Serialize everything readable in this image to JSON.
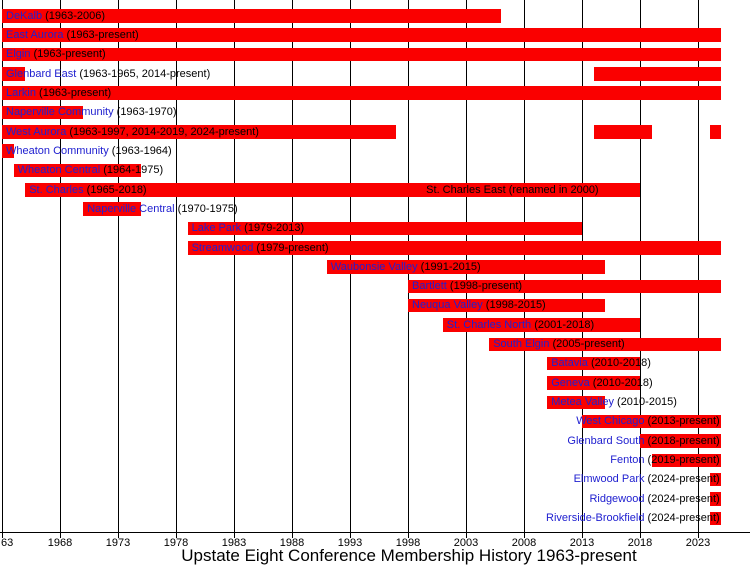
{
  "colors": {
    "bar": "#fa0000",
    "link_text": "#2020d0",
    "year_text": "#000000",
    "grid": "#000000",
    "axis": "#000000",
    "title_text": "#000000",
    "background": "#ffffff"
  },
  "chart_data": {
    "type": "bar",
    "subtype": "timeline-gantt",
    "title": "Upstate Eight Conference Membership History 1963-present",
    "xlim": [
      1963,
      2025
    ],
    "present_maps_to": 2025,
    "grid": "on",
    "x_ticks": [
      {
        "year": 1963,
        "label": "63"
      },
      {
        "year": 1968,
        "label": "1968"
      },
      {
        "year": 1973,
        "label": "1973"
      },
      {
        "year": 1978,
        "label": "1978"
      },
      {
        "year": 1983,
        "label": "1983"
      },
      {
        "year": 1988,
        "label": "1988"
      },
      {
        "year": 1993,
        "label": "1993"
      },
      {
        "year": 1998,
        "label": "1998"
      },
      {
        "year": 2003,
        "label": "2003"
      },
      {
        "year": 2008,
        "label": "2008"
      },
      {
        "year": 2013,
        "label": "2013"
      },
      {
        "year": 2018,
        "label": "2018"
      },
      {
        "year": 2023,
        "label": "2023"
      }
    ],
    "rows": [
      {
        "name": "DeKalb",
        "years": "(1963-2006)",
        "periods": [
          [
            1963,
            2006
          ]
        ],
        "align": "left"
      },
      {
        "name": "East Aurora",
        "years": "(1963-present)",
        "periods": [
          [
            1963,
            2025
          ]
        ],
        "align": "left"
      },
      {
        "name": "Elgin",
        "years": "(1963-present)",
        "periods": [
          [
            1963,
            2025
          ]
        ],
        "align": "left"
      },
      {
        "name": "Glenbard East",
        "years": "(1963-1965, 2014-present)",
        "periods": [
          [
            1963,
            1965
          ],
          [
            2014,
            2025
          ]
        ],
        "align": "left"
      },
      {
        "name": "Larkin",
        "years": "(1963-present)",
        "periods": [
          [
            1963,
            2025
          ]
        ],
        "align": "left"
      },
      {
        "name": "Naperville Community",
        "years": "(1963-1970)",
        "periods": [
          [
            1963,
            1970
          ]
        ],
        "align": "left"
      },
      {
        "name": "West Aurora",
        "years": "(1963-1997, 2014-2019, 2024-present)",
        "periods": [
          [
            1963,
            1997
          ],
          [
            2014,
            2019
          ],
          [
            2024,
            2025
          ]
        ],
        "align": "left"
      },
      {
        "name": "Wheaton Community",
        "years": "(1963-1964)",
        "periods": [
          [
            1963,
            1964
          ]
        ],
        "align": "left"
      },
      {
        "name": "Wheaton Central",
        "years": "(1964-1975)",
        "periods": [
          [
            1964,
            1975
          ]
        ],
        "align": "left"
      },
      {
        "name": "St. Charles",
        "years": "(1965-2018)",
        "periods": [
          [
            1965,
            2018
          ]
        ],
        "align": "left",
        "note": "St. Charles East (renamed in 2000)",
        "note_center_year": 2007
      },
      {
        "name": "Naperville Central",
        "years": "(1970-1975)",
        "periods": [
          [
            1970,
            1975
          ]
        ],
        "align": "left"
      },
      {
        "name": "Lake Park",
        "years": "(1979-2013)",
        "periods": [
          [
            1979,
            2013
          ]
        ],
        "align": "left"
      },
      {
        "name": "Streamwood",
        "years": "(1979-present)",
        "periods": [
          [
            1979,
            2025
          ]
        ],
        "align": "left"
      },
      {
        "name": "Waubonsie Valley",
        "years": "(1991-2015)",
        "periods": [
          [
            1991,
            2015
          ]
        ],
        "align": "left"
      },
      {
        "name": "Bartlett",
        "years": "(1998-present)",
        "periods": [
          [
            1998,
            2025
          ]
        ],
        "align": "left"
      },
      {
        "name": "Neuqua Valley",
        "years": "(1998-2015)",
        "periods": [
          [
            1998,
            2015
          ]
        ],
        "align": "left"
      },
      {
        "name": "St. Charles North",
        "years": "(2001-2018)",
        "periods": [
          [
            2001,
            2018
          ]
        ],
        "align": "left"
      },
      {
        "name": "South Elgin",
        "years": "(2005-present)",
        "periods": [
          [
            2005,
            2025
          ]
        ],
        "align": "left"
      },
      {
        "name": "Batavia",
        "years": "(2010-2018)",
        "periods": [
          [
            2010,
            2018
          ]
        ],
        "align": "left"
      },
      {
        "name": "Geneva",
        "years": "(2010-2018)",
        "periods": [
          [
            2010,
            2018
          ]
        ],
        "align": "left"
      },
      {
        "name": "Metea Valley",
        "years": "(2010-2015)",
        "periods": [
          [
            2010,
            2015
          ]
        ],
        "align": "left"
      },
      {
        "name": "West Chicago",
        "years": "(2013-present)",
        "periods": [
          [
            2013,
            2025
          ]
        ],
        "align": "right"
      },
      {
        "name": "Glenbard South",
        "years": "(2018-present)",
        "periods": [
          [
            2018,
            2025
          ]
        ],
        "align": "right"
      },
      {
        "name": "Fenton",
        "years": "(2019-present)",
        "periods": [
          [
            2019,
            2025
          ]
        ],
        "align": "right"
      },
      {
        "name": "Elmwood Park",
        "years": "(2024-present)",
        "periods": [
          [
            2024,
            2025
          ]
        ],
        "align": "right"
      },
      {
        "name": "Ridgewood",
        "years": "(2024-present)",
        "periods": [
          [
            2024,
            2025
          ]
        ],
        "align": "right"
      },
      {
        "name": "Riverside-Brookfield",
        "years": "(2024-present)",
        "periods": [
          [
            2024,
            2025
          ]
        ],
        "align": "right"
      }
    ]
  }
}
